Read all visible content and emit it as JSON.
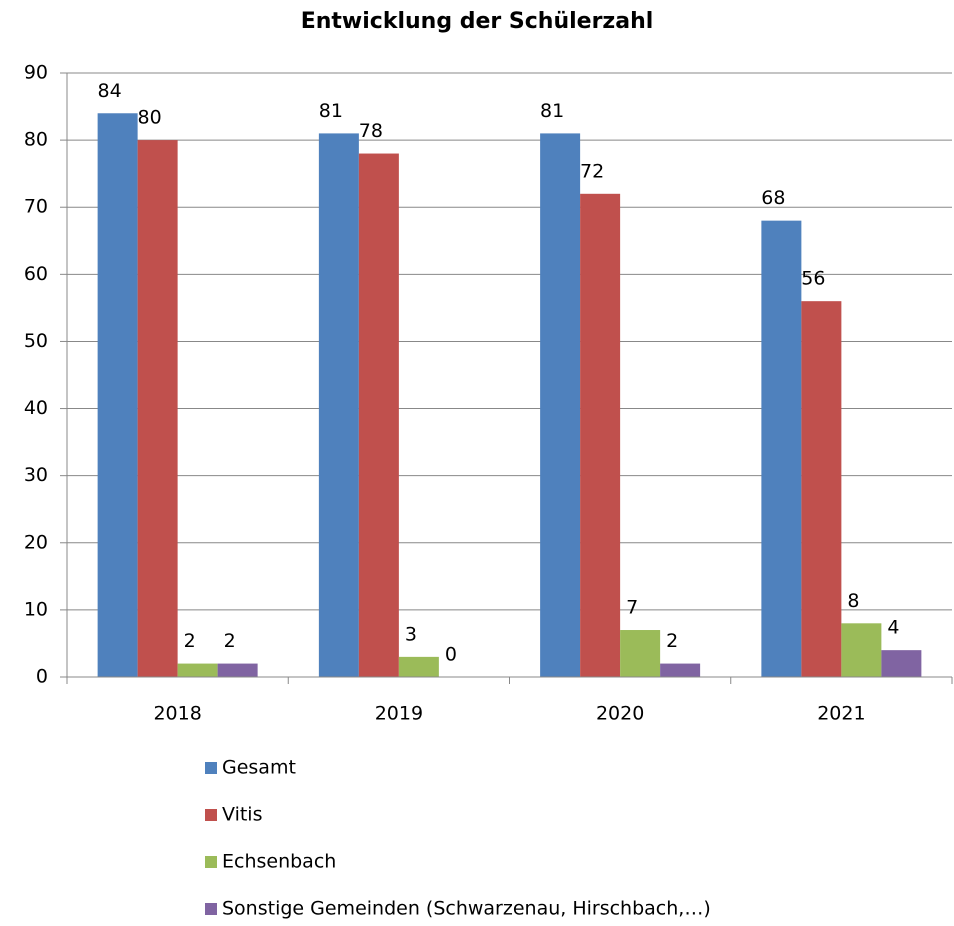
{
  "chart_data": {
    "type": "bar",
    "title": "Entwicklung der Schülerzahl",
    "categories": [
      "2018",
      "2019",
      "2020",
      "2021"
    ],
    "series": [
      {
        "name": "Gesamt",
        "color": "#4f81bd",
        "values": [
          84,
          81,
          81,
          68
        ]
      },
      {
        "name": "Vitis",
        "color": "#c0504d",
        "values": [
          80,
          78,
          72,
          56
        ]
      },
      {
        "name": "Echsenbach",
        "color": "#9bbb59",
        "values": [
          2,
          3,
          7,
          8
        ]
      },
      {
        "name": "Sonstige Gemeinden (Schwarzenau, Hirschbach,…)",
        "color": "#8064a2",
        "values": [
          2,
          0,
          2,
          4
        ]
      }
    ],
    "ylim": [
      0,
      90
    ],
    "yticks": [
      0,
      10,
      20,
      30,
      40,
      50,
      60,
      70,
      80,
      90
    ],
    "grid": true,
    "legend": "bottom"
  }
}
